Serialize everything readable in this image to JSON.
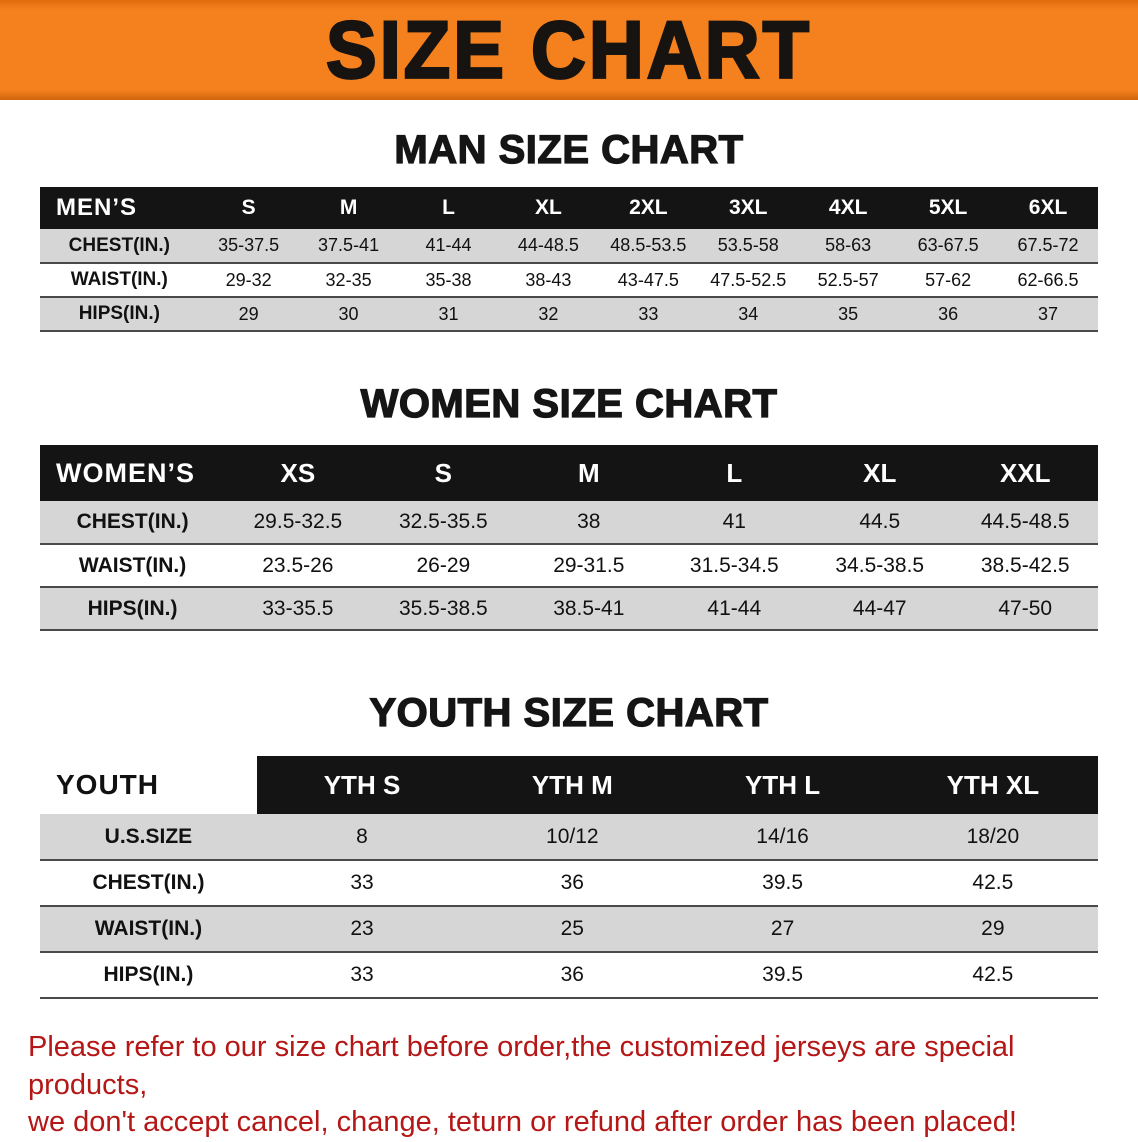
{
  "colors": {
    "accent-orange": "#f5811e",
    "header-black": "#141414",
    "row-gray": "#d6d6d6",
    "notice-red": "#b51616"
  },
  "banner": {
    "title": "SIZE CHART"
  },
  "men": {
    "title": "MAN SIZE CHART",
    "header": [
      "MEN’S",
      "S",
      "M",
      "L",
      "XL",
      "2XL",
      "3XL",
      "4XL",
      "5XL",
      "6XL"
    ],
    "rows": [
      {
        "label": "CHEST(IN.)",
        "values": [
          "35-37.5",
          "37.5-41",
          "41-44",
          "44-48.5",
          "48.5-53.5",
          "53.5-58",
          "58-63",
          "63-67.5",
          "67.5-72"
        ]
      },
      {
        "label": "WAIST(IN.)",
        "values": [
          "29-32",
          "32-35",
          "35-38",
          "38-43",
          "43-47.5",
          "47.5-52.5",
          "52.5-57",
          "57-62",
          "62-66.5"
        ]
      },
      {
        "label": "HIPS(IN.)",
        "values": [
          "29",
          "30",
          "31",
          "32",
          "33",
          "34",
          "35",
          "36",
          "37"
        ]
      }
    ]
  },
  "women": {
    "title": "WOMEN SIZE CHART",
    "header": [
      "WOMEN’S",
      "XS",
      "S",
      "M",
      "L",
      "XL",
      "XXL"
    ],
    "rows": [
      {
        "label": "CHEST(IN.)",
        "values": [
          "29.5-32.5",
          "32.5-35.5",
          "38",
          "41",
          "44.5",
          "44.5-48.5"
        ]
      },
      {
        "label": "WAIST(IN.)",
        "values": [
          "23.5-26",
          "26-29",
          "29-31.5",
          "31.5-34.5",
          "34.5-38.5",
          "38.5-42.5"
        ]
      },
      {
        "label": "HIPS(IN.)",
        "values": [
          "33-35.5",
          "35.5-38.5",
          "38.5-41",
          "41-44",
          "44-47",
          "47-50"
        ]
      }
    ]
  },
  "youth": {
    "title": "YOUTH SIZE CHART",
    "header": [
      "YOUTH",
      "YTH S",
      "YTH M",
      "YTH L",
      "YTH XL"
    ],
    "rows": [
      {
        "label": "U.S.SIZE",
        "values": [
          "8",
          "10/12",
          "14/16",
          "18/20"
        ]
      },
      {
        "label": "CHEST(IN.)",
        "values": [
          "33",
          "36",
          "39.5",
          "42.5"
        ]
      },
      {
        "label": "WAIST(IN.)",
        "values": [
          "23",
          "25",
          "27",
          "29"
        ]
      },
      {
        "label": "HIPS(IN.)",
        "values": [
          "33",
          "36",
          "39.5",
          "42.5"
        ]
      }
    ]
  },
  "notice": {
    "line1": "Please refer to our size chart before order,the customized jerseys are special products,",
    "line2": "we don't accept cancel, change, teturn or refund after order has been placed!"
  }
}
